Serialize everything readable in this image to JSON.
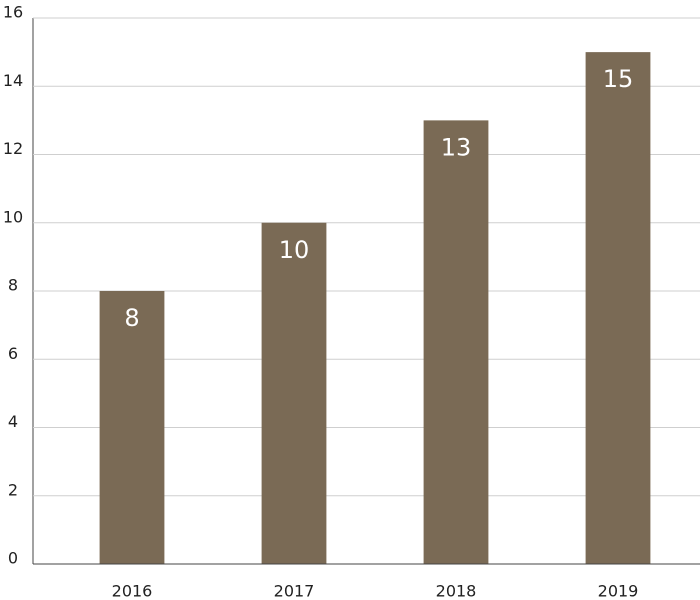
{
  "chart_data": {
    "type": "bar",
    "categories": [
      "2016",
      "2017",
      "2018",
      "2019"
    ],
    "values": [
      8,
      10,
      13,
      15
    ],
    "color": "#7a6a55",
    "ylim": [
      0,
      16
    ],
    "yticks": [
      0,
      2,
      4,
      6,
      8,
      10,
      12,
      14,
      16
    ],
    "grid": true
  }
}
